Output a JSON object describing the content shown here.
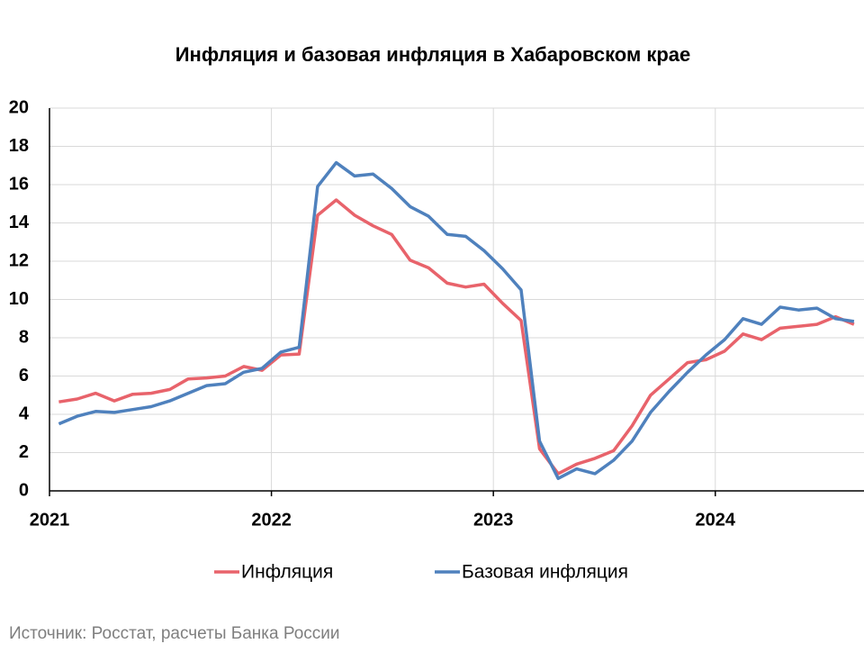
{
  "chart_data": {
    "type": "line",
    "title": "Инфляция и базовая инфляция в Хабаровском крае",
    "source": "Источник: Росстат, расчеты Банка России",
    "x": [
      2021.042,
      2021.125,
      2021.208,
      2021.292,
      2021.375,
      2021.458,
      2021.542,
      2021.625,
      2021.708,
      2021.792,
      2021.875,
      2021.958,
      2022.042,
      2022.125,
      2022.208,
      2022.292,
      2022.375,
      2022.458,
      2022.542,
      2022.625,
      2022.708,
      2022.792,
      2022.875,
      2022.958,
      2023.042,
      2023.125,
      2023.208,
      2023.292,
      2023.375,
      2023.458,
      2023.542,
      2023.625,
      2023.708,
      2023.792,
      2023.875,
      2023.958,
      2024.042,
      2024.125,
      2024.208,
      2024.292,
      2024.375,
      2024.458,
      2024.542,
      2024.625
    ],
    "series": [
      {
        "name": "Инфляция",
        "color": "#e8636b",
        "values": [
          4.65,
          4.8,
          5.1,
          4.7,
          5.05,
          5.1,
          5.3,
          5.85,
          5.9,
          6.0,
          6.5,
          6.3,
          7.1,
          7.15,
          14.4,
          15.2,
          14.4,
          13.85,
          13.4,
          12.05,
          11.65,
          10.85,
          10.65,
          10.8,
          9.8,
          8.9,
          2.2,
          0.9,
          1.4,
          1.7,
          2.1,
          3.4,
          5.0,
          5.85,
          6.7,
          6.85,
          7.3,
          8.2,
          7.9,
          8.5,
          8.6,
          8.7,
          9.1,
          8.7
        ]
      },
      {
        "name": "Базовая инфляция",
        "color": "#4f81bd",
        "values": [
          3.5,
          3.9,
          4.15,
          4.1,
          4.25,
          4.4,
          4.7,
          5.1,
          5.5,
          5.6,
          6.2,
          6.4,
          7.25,
          7.5,
          15.9,
          17.15,
          16.45,
          16.55,
          15.8,
          14.85,
          14.35,
          13.4,
          13.3,
          12.55,
          11.6,
          10.5,
          2.6,
          0.65,
          1.15,
          0.9,
          1.6,
          2.6,
          4.1,
          5.2,
          6.2,
          7.1,
          7.9,
          9.0,
          8.7,
          9.6,
          9.45,
          9.55,
          9.0,
          8.85
        ]
      }
    ],
    "xlim": [
      2021,
      2024.67
    ],
    "xticks": [
      2021,
      2022,
      2023,
      2024
    ],
    "ylim": [
      0,
      20
    ],
    "yticks": [
      0,
      2,
      4,
      6,
      8,
      10,
      12,
      14,
      16,
      18,
      20
    ],
    "grid": true,
    "legend": "bottom"
  }
}
